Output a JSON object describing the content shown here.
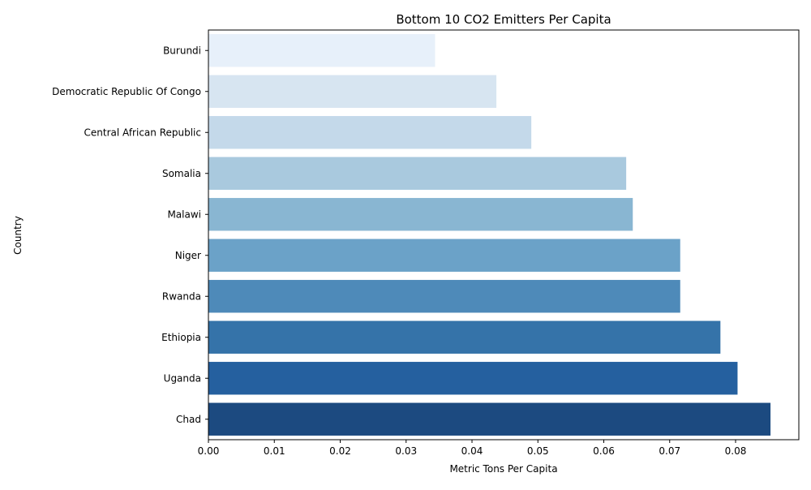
{
  "chart_data": {
    "type": "bar",
    "orientation": "horizontal",
    "title": "Bottom 10 CO2 Emitters Per Capita",
    "xlabel": "Metric Tons Per Capita",
    "ylabel": "Country",
    "categories": [
      "Burundi",
      "Democratic Republic Of Congo",
      "Central African Republic",
      "Somalia",
      "Malawi",
      "Niger",
      "Rwanda",
      "Ethiopia",
      "Uganda",
      "Chad"
    ],
    "values": [
      0.0344,
      0.0437,
      0.049,
      0.0634,
      0.0644,
      0.0716,
      0.0716,
      0.0777,
      0.0803,
      0.0853
    ],
    "colors": [
      "#e7f0fa",
      "#d7e5f1",
      "#c4d9ea",
      "#a9c9de",
      "#89b6d2",
      "#6ba2c8",
      "#4e8ab9",
      "#3573a9",
      "#25609f",
      "#1c4a80"
    ],
    "xlim": [
      0,
      0.0896
    ],
    "xticks": [
      0.0,
      0.01,
      0.02,
      0.03,
      0.04,
      0.05,
      0.06,
      0.07,
      0.08
    ],
    "xtick_labels": [
      "0.00",
      "0.01",
      "0.02",
      "0.03",
      "0.04",
      "0.05",
      "0.06",
      "0.07",
      "0.08"
    ],
    "grid": false,
    "legend": "none"
  }
}
